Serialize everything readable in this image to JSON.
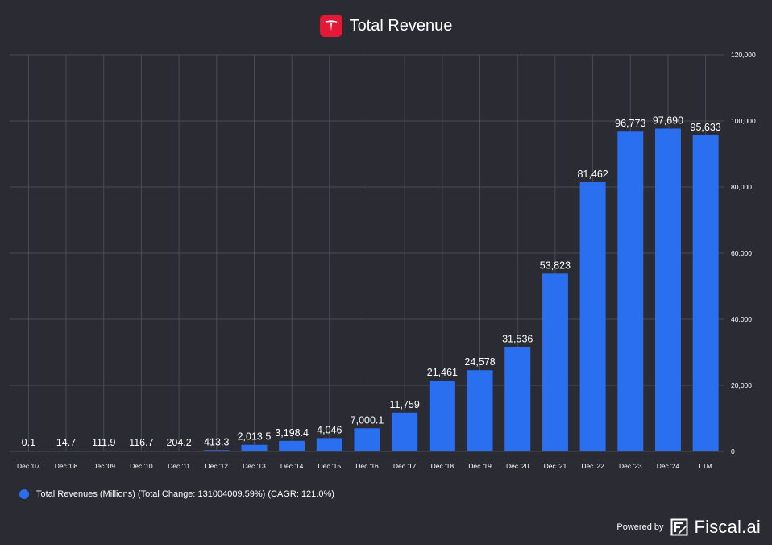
{
  "colors": {
    "background": "#2a2b33",
    "bar": "#2a6ff0",
    "grid": "#4a4c56",
    "brand_red": "#e31937"
  },
  "header": {
    "title": "Total Revenue",
    "logo_icon": "tesla-logo-icon"
  },
  "chart_data": {
    "type": "bar",
    "title": "Total Revenue",
    "xlabel": "",
    "ylabel": "",
    "ylim": [
      0,
      120000
    ],
    "yticks": [
      0,
      20000,
      40000,
      60000,
      80000,
      100000,
      120000
    ],
    "ytick_labels": [
      "0",
      "20,000",
      "40,000",
      "60,000",
      "80,000",
      "100,000",
      "120,000"
    ],
    "categories": [
      "Dec '07",
      "Dec '08",
      "Dec '09",
      "Dec '10",
      "Dec '11",
      "Dec '12",
      "Dec '13",
      "Dec '14",
      "Dec '15",
      "Dec '16",
      "Dec '17",
      "Dec '18",
      "Dec '19",
      "Dec '20",
      "Dec '21",
      "Dec '22",
      "Dec '23",
      "Dec '24",
      "LTM"
    ],
    "values": [
      0.1,
      14.7,
      111.9,
      116.7,
      204.2,
      413.3,
      2013.5,
      3198.4,
      4046,
      7000.1,
      11759,
      21461,
      24578,
      31536,
      53823,
      81462,
      96773,
      97690,
      95633
    ],
    "value_labels": [
      "0.1",
      "14.7",
      "111.9",
      "116.7",
      "204.2",
      "413.3",
      "2,013.5",
      "3,198.4",
      "4,046",
      "7,000.1",
      "11,759",
      "21,461",
      "24,578",
      "31,536",
      "53,823",
      "81,462",
      "96,773",
      "97,690",
      "95,633"
    ],
    "grid": true,
    "legend_position": "bottom-left",
    "series_name": "Total Revenues (Millions) (Total Change: 131004009.59%) (CAGR: 121.0%)"
  },
  "legend": {
    "label": "Total Revenues (Millions) (Total Change: 131004009.59%) (CAGR: 121.0%)"
  },
  "footer": {
    "powered_by": "Powered by",
    "brand": "Fiscal.ai"
  }
}
